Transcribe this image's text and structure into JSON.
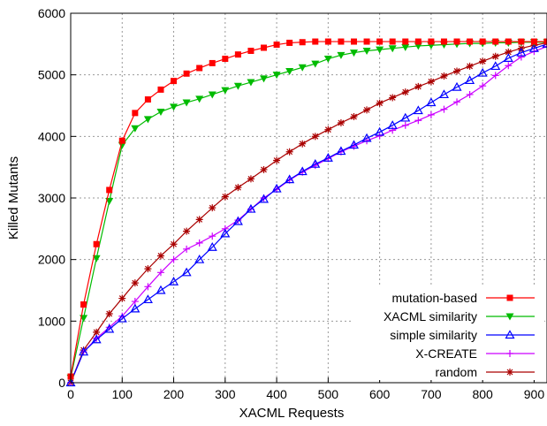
{
  "chart_data": {
    "type": "line",
    "title": "",
    "xlabel": "XACML Requests",
    "ylabel": "Killed Mutants",
    "xlim": [
      0,
      925
    ],
    "ylim": [
      0,
      6000
    ],
    "xticks": [
      0,
      100,
      200,
      300,
      400,
      500,
      600,
      700,
      800,
      900
    ],
    "yticks": [
      0,
      1000,
      2000,
      3000,
      4000,
      5000,
      6000
    ],
    "grid": true,
    "legend_position": "bottom-right",
    "x": [
      0,
      25,
      50,
      75,
      100,
      125,
      150,
      175,
      200,
      225,
      250,
      275,
      300,
      325,
      350,
      375,
      400,
      425,
      450,
      475,
      500,
      525,
      550,
      575,
      600,
      625,
      650,
      675,
      700,
      725,
      750,
      775,
      800,
      825,
      850,
      875,
      900,
      925
    ],
    "series": [
      {
        "name": "mutation-based",
        "color": "#ff0000",
        "marker": "square",
        "values": [
          100,
          1270,
          2250,
          3130,
          3930,
          4380,
          4600,
          4760,
          4900,
          5020,
          5110,
          5190,
          5260,
          5330,
          5390,
          5440,
          5490,
          5520,
          5530,
          5540,
          5540,
          5540,
          5540,
          5540,
          5540,
          5540,
          5540,
          5540,
          5540,
          5540,
          5540,
          5540,
          5540,
          5540,
          5540,
          5540,
          5540,
          5540
        ]
      },
      {
        "name": "XACML similarity",
        "color": "#00bb00",
        "marker": "triangle-down",
        "values": [
          80,
          1050,
          2020,
          2950,
          3860,
          4130,
          4280,
          4400,
          4480,
          4550,
          4610,
          4680,
          4750,
          4820,
          4880,
          4940,
          5000,
          5060,
          5120,
          5180,
          5260,
          5320,
          5360,
          5390,
          5410,
          5430,
          5450,
          5470,
          5480,
          5490,
          5500,
          5510,
          5510,
          5520,
          5520,
          5530,
          5530,
          5530
        ]
      },
      {
        "name": "simple similarity",
        "color": "#0000ff",
        "marker": "triangle-up",
        "values": [
          0,
          500,
          700,
          870,
          1040,
          1200,
          1350,
          1500,
          1640,
          1790,
          2000,
          2200,
          2420,
          2620,
          2820,
          2980,
          3150,
          3300,
          3430,
          3550,
          3650,
          3760,
          3860,
          3970,
          4070,
          4180,
          4300,
          4420,
          4550,
          4680,
          4800,
          4910,
          5030,
          5140,
          5270,
          5360,
          5430,
          5500
        ]
      },
      {
        "name": "X-CREATE",
        "color": "#cc00ff",
        "marker": "plus",
        "values": [
          0,
          500,
          720,
          900,
          1080,
          1320,
          1560,
          1790,
          2000,
          2170,
          2270,
          2380,
          2500,
          2640,
          2820,
          3000,
          3140,
          3290,
          3420,
          3530,
          3640,
          3750,
          3840,
          3930,
          4010,
          4100,
          4180,
          4260,
          4350,
          4440,
          4560,
          4680,
          4820,
          4990,
          5150,
          5290,
          5380,
          5460
        ]
      },
      {
        "name": "random",
        "color": "#aa0000",
        "marker": "star",
        "values": [
          0,
          530,
          820,
          1120,
          1370,
          1620,
          1850,
          2060,
          2250,
          2460,
          2650,
          2840,
          3020,
          3170,
          3310,
          3460,
          3610,
          3750,
          3880,
          4000,
          4110,
          4220,
          4320,
          4430,
          4540,
          4630,
          4720,
          4810,
          4890,
          4980,
          5060,
          5140,
          5220,
          5300,
          5370,
          5430,
          5480,
          5520
        ]
      }
    ]
  }
}
